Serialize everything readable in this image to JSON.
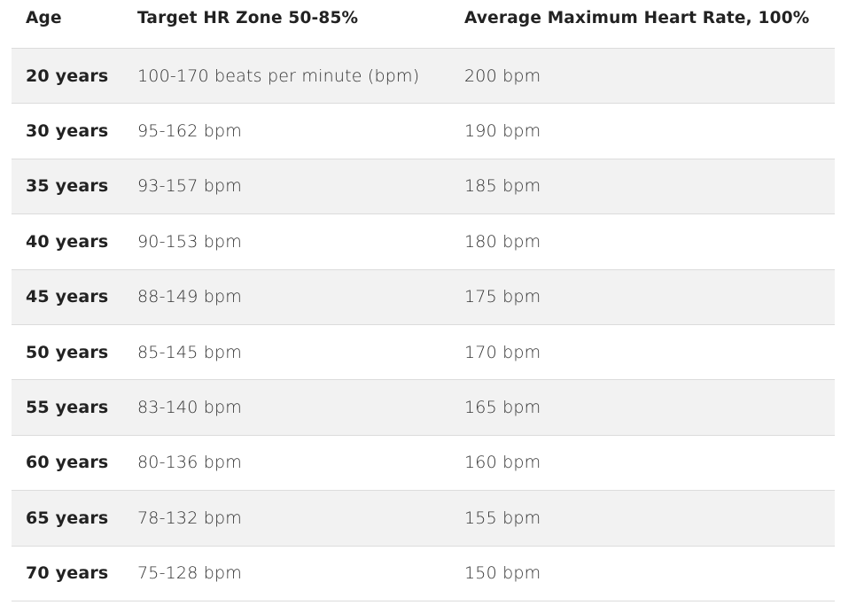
{
  "table": {
    "header": [
      "Age",
      "Target HR Zone 50-85%",
      "Average Maximum Heart Rate, 100%"
    ],
    "rows": [
      [
        "20 years",
        "100-170 beats per minute (bpm)",
        "200 bpm"
      ],
      [
        "30 years",
        "95-162 bpm",
        "190 bpm"
      ],
      [
        "35 years",
        "93-157 bpm",
        "185 bpm"
      ],
      [
        "40 years",
        "90-153 bpm",
        "180 bpm"
      ],
      [
        "45 years",
        "88-149 bpm",
        "175 bpm"
      ],
      [
        "50 years",
        "85-145 bpm",
        "170 bpm"
      ],
      [
        "55 years",
        "83-140 bpm",
        "165 bpm"
      ],
      [
        "60 years",
        "80-136 bpm",
        "160 bpm"
      ],
      [
        "65 years",
        "78-132 bpm",
        "155 bpm"
      ],
      [
        "70 years",
        "75-128 bpm",
        "150 bpm"
      ]
    ]
  }
}
